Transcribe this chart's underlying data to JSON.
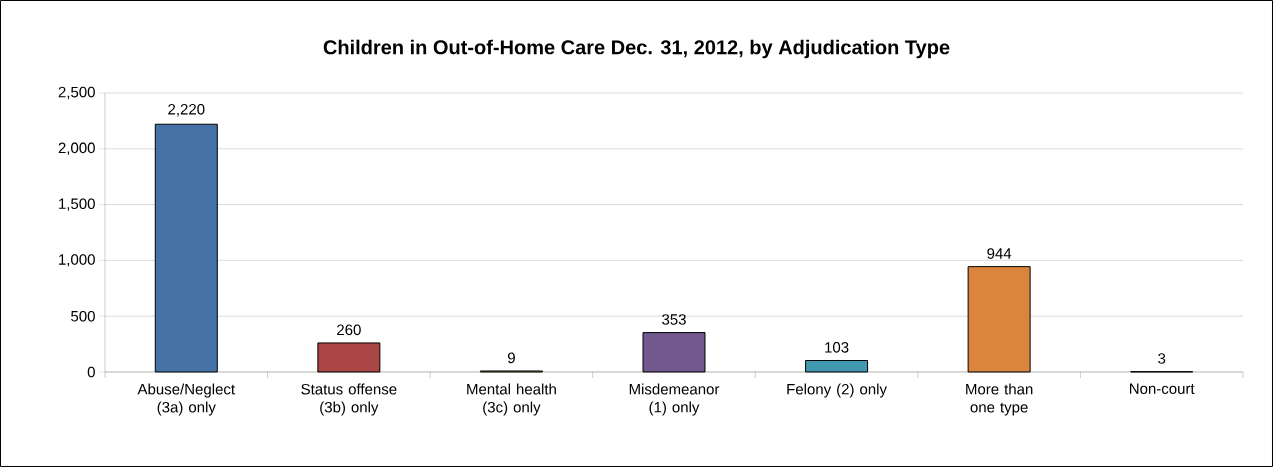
{
  "chart_data": {
    "type": "bar",
    "title": "Children in Out-of-Home Care Dec. 31, 2012, by Adjudication Type",
    "categories": [
      "Abuse/Neglect (3a) only",
      "Status offense (3b) only",
      "Mental health (3c) only",
      "Misdemeanor (1) only",
      "Felony (2) only",
      "More than one type",
      "Non-court"
    ],
    "values": [
      2220,
      260,
      9,
      353,
      103,
      944,
      3
    ],
    "colors": [
      "#4572a7",
      "#aa4643",
      "#89a54e",
      "#71588f",
      "#4198af",
      "#db843d",
      "#93a9cf"
    ],
    "ylim": [
      0,
      2500
    ],
    "yticks": [
      0,
      500,
      {
        "value": 1000,
        "label": "1,000"
      },
      {
        "value": 1500,
        "label": "1,500"
      },
      {
        "value": 2000,
        "label": "2,000"
      },
      {
        "value": 2500,
        "label": "2,500"
      }
    ],
    "value_labels": [
      "2,220",
      "260",
      "9",
      "353",
      "103",
      "944",
      "3"
    ],
    "grid": "y"
  }
}
